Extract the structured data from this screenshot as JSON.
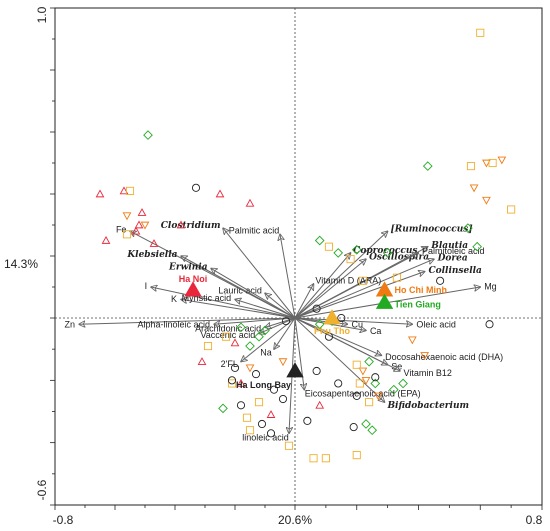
{
  "chart_data": {
    "type": "scatter",
    "title": "",
    "xlabel": "20.6%",
    "ylabel": "14.3%",
    "xlim": [
      -0.8,
      0.8
    ],
    "ylim": [
      -0.6,
      1.0
    ],
    "x_tick_labels": [
      "-0.8",
      "0.8"
    ],
    "y_tick_labels": [
      "1.0",
      "-0.6"
    ],
    "colors": {
      "red": "#e8283a",
      "orange": "#f07a12",
      "yellow": "#f0b030",
      "green": "#22aa22",
      "black": "#222222",
      "arrow": "#666666"
    },
    "vectors": [
      {
        "label": "Zn",
        "x": -0.72,
        "y": -0.02,
        "italic": false
      },
      {
        "label": "I",
        "x": -0.48,
        "y": 0.1,
        "italic": false
      },
      {
        "label": "K",
        "x": -0.38,
        "y": 0.06,
        "italic": false
      },
      {
        "label": "Fe",
        "x": -0.55,
        "y": 0.28,
        "italic": false
      },
      {
        "label": "Alpha-linoleic acid",
        "x": -0.27,
        "y": -0.02,
        "italic": false
      },
      {
        "label": "Myristic acid",
        "x": -0.2,
        "y": 0.06,
        "italic": false
      },
      {
        "label": "Lauric acid",
        "x": -0.1,
        "y": 0.08,
        "italic": false
      },
      {
        "label": "Arachidonic acid",
        "x": -0.1,
        "y": -0.03,
        "italic": false
      },
      {
        "label": "Vaccenic acid",
        "x": -0.12,
        "y": -0.05,
        "italic": false
      },
      {
        "label": "2'FL",
        "x": -0.18,
        "y": -0.14,
        "italic": false
      },
      {
        "label": "Na",
        "x": -0.07,
        "y": -0.1,
        "italic": false
      },
      {
        "label": "Klebsiella",
        "x": -0.38,
        "y": 0.2,
        "italic": true
      },
      {
        "label": "Erwinia",
        "x": -0.28,
        "y": 0.16,
        "italic": true
      },
      {
        "label": "Clostridium",
        "x": -0.24,
        "y": 0.29,
        "italic": true
      },
      {
        "label": "Palmitic acid",
        "x": -0.05,
        "y": 0.27,
        "italic": false
      },
      {
        "label": "[Ruminococcus]",
        "x": 0.3,
        "y": 0.28,
        "italic": true
      },
      {
        "label": "Coprococcus",
        "x": 0.18,
        "y": 0.21,
        "italic": true
      },
      {
        "label": "Oscillospira",
        "x": 0.23,
        "y": 0.19,
        "italic": true
      },
      {
        "label": "Blautia",
        "x": 0.43,
        "y": 0.23,
        "italic": true
      },
      {
        "label": "Palmitoleic acid",
        "x": 0.4,
        "y": 0.21,
        "italic": false
      },
      {
        "label": "Dorea",
        "x": 0.45,
        "y": 0.19,
        "italic": true
      },
      {
        "label": "Collinsella",
        "x": 0.42,
        "y": 0.15,
        "italic": true
      },
      {
        "label": "Vitamin D (ARA)",
        "x": 0.06,
        "y": 0.11,
        "italic": false
      },
      {
        "label": "Mg",
        "x": 0.6,
        "y": 0.1,
        "italic": false
      },
      {
        "label": "Oleic acid",
        "x": 0.38,
        "y": -0.02,
        "italic": false
      },
      {
        "label": "Cu",
        "x": 0.17,
        "y": -0.02,
        "italic": false
      },
      {
        "label": "Ca",
        "x": 0.23,
        "y": -0.04,
        "italic": false
      },
      {
        "label": "Docosahexaenoic acid (DHA)",
        "x": 0.28,
        "y": -0.12,
        "italic": false
      },
      {
        "label": "Se",
        "x": 0.3,
        "y": -0.15,
        "italic": false
      },
      {
        "label": "Vitamin B12",
        "x": 0.34,
        "y": -0.17,
        "italic": false
      },
      {
        "label": "Bifidobacterium",
        "x": 0.29,
        "y": -0.27,
        "italic": true
      },
      {
        "label": "Eicosapentaenoic acid (EPA)",
        "x": 0.03,
        "y": -0.23,
        "italic": false
      },
      {
        "label": "linoleic acid",
        "x": -0.02,
        "y": -0.37,
        "italic": false
      }
    ],
    "groups": [
      {
        "name": "Ha Noi",
        "x": -0.34,
        "y": 0.09,
        "color": "#e8283a"
      },
      {
        "name": "Ho Chi Minh",
        "x": 0.29,
        "y": 0.09,
        "color": "#f07a12"
      },
      {
        "name": "Tien Giang",
        "x": 0.29,
        "y": 0.05,
        "color": "#22aa22"
      },
      {
        "name": "Phu Tho",
        "x": 0.12,
        "y": 0.0,
        "color": "#f0b030"
      },
      {
        "name": "Ha Long Bay",
        "x": 0.0,
        "y": -0.17,
        "color": "#222222"
      }
    ],
    "samples": [
      {
        "shape": "triangle-up",
        "color": "red",
        "points": [
          [
            -0.65,
            0.4
          ],
          [
            -0.57,
            0.41
          ],
          [
            -0.51,
            0.34
          ],
          [
            -0.52,
            0.3
          ],
          [
            -0.47,
            0.24
          ],
          [
            -0.63,
            0.25
          ],
          [
            -0.38,
            0.3
          ],
          [
            -0.25,
            0.4
          ],
          [
            -0.15,
            0.37
          ],
          [
            -0.2,
            -0.08
          ],
          [
            -0.31,
            -0.14
          ],
          [
            -0.18,
            -0.21
          ],
          [
            0.08,
            -0.28
          ],
          [
            -0.08,
            -0.31
          ],
          [
            -0.53,
            0.28
          ]
        ]
      },
      {
        "shape": "triangle-down",
        "color": "orange",
        "points": [
          [
            -0.56,
            0.33
          ],
          [
            -0.5,
            0.3
          ],
          [
            0.62,
            0.5
          ],
          [
            0.67,
            0.51
          ],
          [
            0.58,
            0.42
          ],
          [
            0.62,
            0.38
          ],
          [
            0.38,
            -0.07
          ],
          [
            0.42,
            -0.12
          ],
          [
            0.22,
            -0.17
          ],
          [
            0.27,
            -0.25
          ],
          [
            -0.15,
            -0.16
          ],
          [
            -0.04,
            -0.14
          ],
          [
            0.23,
            -0.2
          ]
        ]
      },
      {
        "shape": "square",
        "color": "yellow",
        "points": [
          [
            0.6,
            0.92
          ],
          [
            0.57,
            0.49
          ],
          [
            0.64,
            0.5
          ],
          [
            0.7,
            0.35
          ],
          [
            -0.55,
            0.41
          ],
          [
            -0.56,
            0.27
          ],
          [
            0.11,
            0.23
          ],
          [
            0.18,
            0.19
          ],
          [
            0.33,
            0.13
          ],
          [
            0.22,
            0.12
          ],
          [
            -0.23,
            -0.06
          ],
          [
            -0.21,
            -0.21
          ],
          [
            -0.12,
            -0.27
          ],
          [
            -0.16,
            -0.32
          ],
          [
            -0.15,
            -0.36
          ],
          [
            -0.02,
            -0.41
          ],
          [
            0.1,
            -0.45
          ],
          [
            0.06,
            -0.45
          ],
          [
            0.2,
            -0.15
          ],
          [
            0.24,
            -0.27
          ],
          [
            0.21,
            -0.21
          ],
          [
            0.2,
            -0.44
          ],
          [
            -0.29,
            -0.09
          ]
        ]
      },
      {
        "shape": "diamond",
        "color": "green",
        "points": [
          [
            -0.49,
            0.59
          ],
          [
            0.43,
            0.49
          ],
          [
            0.56,
            0.29
          ],
          [
            0.59,
            0.23
          ],
          [
            0.08,
            0.25
          ],
          [
            0.14,
            0.21
          ],
          [
            0.2,
            0.22
          ],
          [
            0.3,
            0.21
          ],
          [
            -0.18,
            -0.03
          ],
          [
            -0.12,
            -0.06
          ],
          [
            -0.15,
            -0.09
          ],
          [
            -0.1,
            -0.04
          ],
          [
            0.08,
            -0.02
          ],
          [
            0.12,
            -0.01
          ],
          [
            0.24,
            -0.14
          ],
          [
            0.35,
            -0.21
          ],
          [
            0.32,
            -0.23
          ],
          [
            0.26,
            -0.21
          ],
          [
            0.25,
            -0.36
          ],
          [
            0.23,
            -0.34
          ],
          [
            -0.24,
            -0.29
          ]
        ]
      },
      {
        "shape": "circle",
        "color": "black",
        "points": [
          [
            -0.33,
            0.42
          ],
          [
            0.47,
            0.12
          ],
          [
            0.63,
            -0.02
          ],
          [
            0.15,
            0.0
          ],
          [
            0.07,
            0.03
          ],
          [
            0.11,
            -0.06
          ],
          [
            -0.03,
            -0.01
          ],
          [
            -0.2,
            -0.16
          ],
          [
            -0.21,
            -0.2
          ],
          [
            -0.13,
            -0.18
          ],
          [
            -0.07,
            -0.23
          ],
          [
            -0.04,
            -0.26
          ],
          [
            0.14,
            -0.21
          ],
          [
            0.2,
            -0.25
          ],
          [
            -0.18,
            -0.28
          ],
          [
            -0.11,
            -0.34
          ],
          [
            0.04,
            -0.33
          ],
          [
            0.19,
            -0.35
          ],
          [
            0.26,
            -0.19
          ],
          [
            0.07,
            -0.17
          ],
          [
            -0.08,
            -0.37
          ]
        ]
      }
    ]
  }
}
